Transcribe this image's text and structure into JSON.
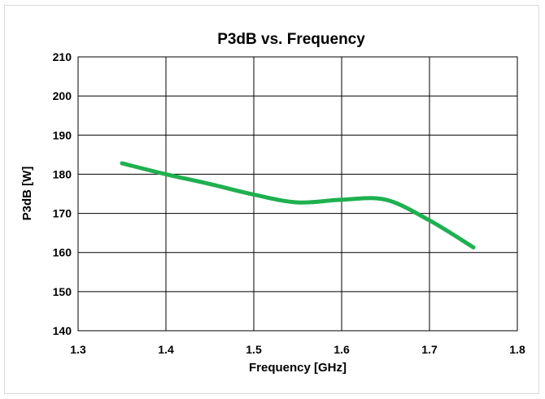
{
  "chart_data": {
    "type": "line",
    "title": "P3dB vs. Frequency",
    "xlabel": "Frequency [GHz]",
    "ylabel": "P3dB [W]",
    "xlim": [
      1.3,
      1.8
    ],
    "ylim": [
      140,
      210
    ],
    "x_ticks": [
      "1.3",
      "1.4",
      "1.5",
      "1.6",
      "1.7",
      "1.8"
    ],
    "y_ticks": [
      "140",
      "150",
      "160",
      "170",
      "180",
      "190",
      "200",
      "210"
    ],
    "grid": true,
    "legend": "none",
    "series": [
      {
        "color": "#1fb050",
        "x": [
          1.35,
          1.4,
          1.45,
          1.5,
          1.55,
          1.6,
          1.65,
          1.7,
          1.75
        ],
        "y": [
          182.8,
          180.0,
          177.5,
          174.8,
          172.8,
          173.5,
          173.5,
          168.2,
          161.3
        ]
      }
    ]
  }
}
